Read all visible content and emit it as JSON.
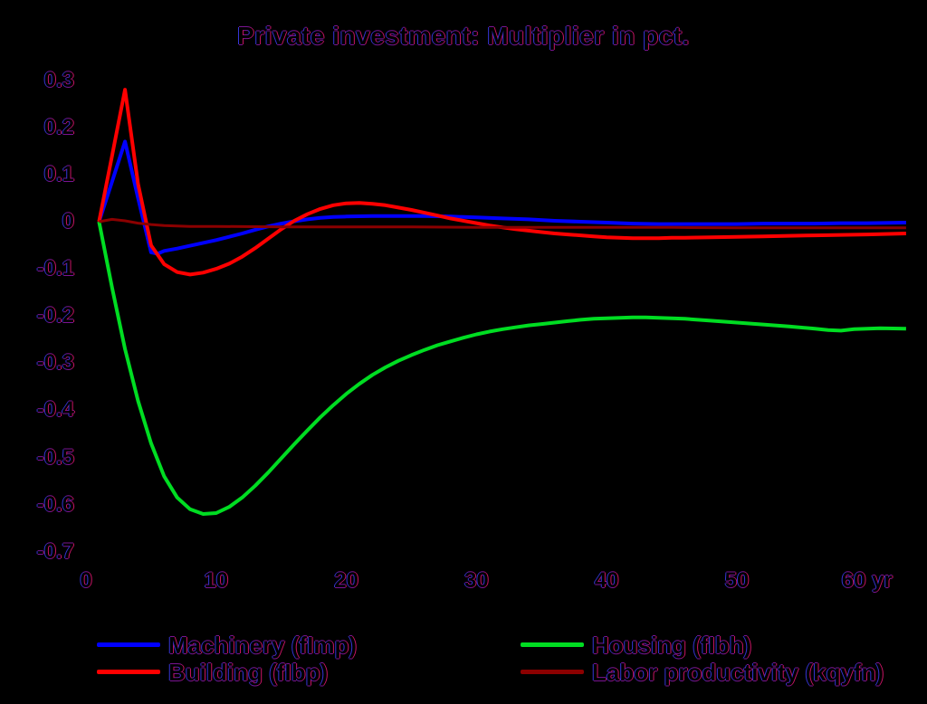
{
  "chart_data": {
    "type": "line",
    "title": "Private investment: Multiplier in pct.",
    "x_unit": "yr",
    "xlim": [
      0,
      63.8
    ],
    "ylim": [
      -0.72,
      0.33
    ],
    "grid": false,
    "legend_position": "bottom-two-columns",
    "background_color": "#000000",
    "text_fringe_colors": {
      "left": "#3535d6",
      "right": "#c81464",
      "vertical": "#7a1492"
    },
    "x_tick_values": [
      0,
      10,
      20,
      30,
      40,
      50,
      60
    ],
    "x_tick_labels": [
      "0",
      "10",
      "20",
      "30",
      "40",
      "50",
      "60 yr"
    ],
    "y_tick_values": [
      0.3,
      0.2,
      0.1,
      0,
      -0.1,
      -0.2,
      -0.3,
      -0.4,
      -0.5,
      -0.6,
      -0.7
    ],
    "y_tick_labels": [
      "0.3",
      "0.2",
      "0.1",
      "0",
      "-0.1",
      "-0.2",
      "-0.3",
      "-0.4",
      "-0.5",
      "-0.6",
      "-0.7"
    ],
    "series": [
      {
        "name": "Machinery (fImp)",
        "color": "#0000ff",
        "line_width": 4,
        "points": [
          [
            1,
            0
          ],
          [
            2,
            0.085
          ],
          [
            3,
            0.17
          ],
          [
            4,
            0.05
          ],
          [
            5,
            -0.065
          ],
          [
            5.5,
            -0.068
          ],
          [
            6,
            -0.062
          ],
          [
            7,
            -0.057
          ],
          [
            8,
            -0.051
          ],
          [
            9,
            -0.045
          ],
          [
            10,
            -0.039
          ],
          [
            11,
            -0.032
          ],
          [
            12,
            -0.025
          ],
          [
            13,
            -0.017
          ],
          [
            14,
            -0.01
          ],
          [
            15,
            -0.004
          ],
          [
            16,
            0.001
          ],
          [
            17,
            0.005
          ],
          [
            18,
            0.008
          ],
          [
            19,
            0.01
          ],
          [
            20,
            0.011
          ],
          [
            22,
            0.012
          ],
          [
            24,
            0.012
          ],
          [
            26,
            0.012
          ],
          [
            28,
            0.011
          ],
          [
            30,
            0.009
          ],
          [
            32,
            0.007
          ],
          [
            34,
            0.005
          ],
          [
            36,
            0.002
          ],
          [
            38,
            0
          ],
          [
            40,
            -0.002
          ],
          [
            42,
            -0.004
          ],
          [
            44,
            -0.005
          ],
          [
            46,
            -0.005
          ],
          [
            48,
            -0.005
          ],
          [
            50,
            -0.005
          ],
          [
            52,
            -0.004
          ],
          [
            54,
            -0.004
          ],
          [
            56,
            -0.004
          ],
          [
            58,
            -0.003
          ],
          [
            60,
            -0.003
          ],
          [
            63,
            -0.002
          ]
        ]
      },
      {
        "name": "Building (fIbp)",
        "color": "#ff0000",
        "line_width": 4,
        "points": [
          [
            1,
            0
          ],
          [
            2,
            0.14
          ],
          [
            3,
            0.28
          ],
          [
            4,
            0.08
          ],
          [
            5,
            -0.05
          ],
          [
            6,
            -0.09
          ],
          [
            7,
            -0.107
          ],
          [
            8,
            -0.112
          ],
          [
            9,
            -0.108
          ],
          [
            10,
            -0.1
          ],
          [
            11,
            -0.089
          ],
          [
            12,
            -0.074
          ],
          [
            13,
            -0.056
          ],
          [
            14,
            -0.036
          ],
          [
            15,
            -0.016
          ],
          [
            16,
            0.002
          ],
          [
            17,
            0.016
          ],
          [
            18,
            0.027
          ],
          [
            19,
            0.035
          ],
          [
            20,
            0.039
          ],
          [
            21,
            0.04
          ],
          [
            22,
            0.038
          ],
          [
            23,
            0.035
          ],
          [
            24,
            0.03
          ],
          [
            25,
            0.025
          ],
          [
            26,
            0.019
          ],
          [
            27,
            0.013
          ],
          [
            28,
            0.007
          ],
          [
            29,
            0.002
          ],
          [
            30,
            -0.003
          ],
          [
            31,
            -0.008
          ],
          [
            32,
            -0.012
          ],
          [
            33,
            -0.016
          ],
          [
            34,
            -0.019
          ],
          [
            35,
            -0.022
          ],
          [
            36,
            -0.025
          ],
          [
            37,
            -0.027
          ],
          [
            38,
            -0.029
          ],
          [
            39,
            -0.031
          ],
          [
            40,
            -0.033
          ],
          [
            41,
            -0.034
          ],
          [
            42,
            -0.035
          ],
          [
            43,
            -0.035
          ],
          [
            44,
            -0.035
          ],
          [
            45,
            -0.034
          ],
          [
            46,
            -0.034
          ],
          [
            48,
            -0.033
          ],
          [
            50,
            -0.032
          ],
          [
            52,
            -0.031
          ],
          [
            54,
            -0.03
          ],
          [
            56,
            -0.029
          ],
          [
            58,
            -0.028
          ],
          [
            60,
            -0.027
          ],
          [
            63,
            -0.025
          ]
        ]
      },
      {
        "name": "Housing (fIbh)",
        "color": "#00dd22",
        "line_width": 4,
        "points": [
          [
            1,
            0
          ],
          [
            2,
            -0.14
          ],
          [
            3,
            -0.27
          ],
          [
            4,
            -0.38
          ],
          [
            5,
            -0.47
          ],
          [
            6,
            -0.54
          ],
          [
            7,
            -0.585
          ],
          [
            8,
            -0.61
          ],
          [
            9,
            -0.62
          ],
          [
            10,
            -0.618
          ],
          [
            11,
            -0.605
          ],
          [
            12,
            -0.585
          ],
          [
            13,
            -0.56
          ],
          [
            14,
            -0.532
          ],
          [
            15,
            -0.502
          ],
          [
            16,
            -0.472
          ],
          [
            17,
            -0.443
          ],
          [
            18,
            -0.415
          ],
          [
            19,
            -0.389
          ],
          [
            20,
            -0.365
          ],
          [
            21,
            -0.344
          ],
          [
            22,
            -0.325
          ],
          [
            23,
            -0.309
          ],
          [
            24,
            -0.295
          ],
          [
            25,
            -0.283
          ],
          [
            26,
            -0.272
          ],
          [
            27,
            -0.262
          ],
          [
            28,
            -0.254
          ],
          [
            29,
            -0.246
          ],
          [
            30,
            -0.239
          ],
          [
            31,
            -0.233
          ],
          [
            32,
            -0.228
          ],
          [
            33,
            -0.224
          ],
          [
            34,
            -0.22
          ],
          [
            35,
            -0.217
          ],
          [
            36,
            -0.214
          ],
          [
            37,
            -0.211
          ],
          [
            38,
            -0.208
          ],
          [
            39,
            -0.206
          ],
          [
            40,
            -0.205
          ],
          [
            41,
            -0.204
          ],
          [
            42,
            -0.203
          ],
          [
            43,
            -0.203
          ],
          [
            44,
            -0.204
          ],
          [
            45,
            -0.205
          ],
          [
            46,
            -0.206
          ],
          [
            47,
            -0.208
          ],
          [
            48,
            -0.21
          ],
          [
            50,
            -0.214
          ],
          [
            52,
            -0.218
          ],
          [
            54,
            -0.222
          ],
          [
            56,
            -0.227
          ],
          [
            57,
            -0.23
          ],
          [
            58,
            -0.231
          ],
          [
            59,
            -0.228
          ],
          [
            60,
            -0.227
          ],
          [
            61,
            -0.226
          ],
          [
            63,
            -0.227
          ]
        ]
      },
      {
        "name": "Labor productivity (kqyfn)",
        "color": "#8b0000",
        "line_width": 3,
        "points": [
          [
            1,
            0
          ],
          [
            2,
            0.005
          ],
          [
            3,
            0.002
          ],
          [
            4,
            -0.003
          ],
          [
            5,
            -0.006
          ],
          [
            6,
            -0.008
          ],
          [
            7,
            -0.009
          ],
          [
            8,
            -0.01
          ],
          [
            10,
            -0.01
          ],
          [
            15,
            -0.011
          ],
          [
            20,
            -0.011
          ],
          [
            25,
            -0.011
          ],
          [
            30,
            -0.012
          ],
          [
            35,
            -0.012
          ],
          [
            40,
            -0.012
          ],
          [
            45,
            -0.012
          ],
          [
            50,
            -0.013
          ],
          [
            55,
            -0.013
          ],
          [
            60,
            -0.013
          ],
          [
            63,
            -0.013
          ]
        ]
      }
    ]
  }
}
